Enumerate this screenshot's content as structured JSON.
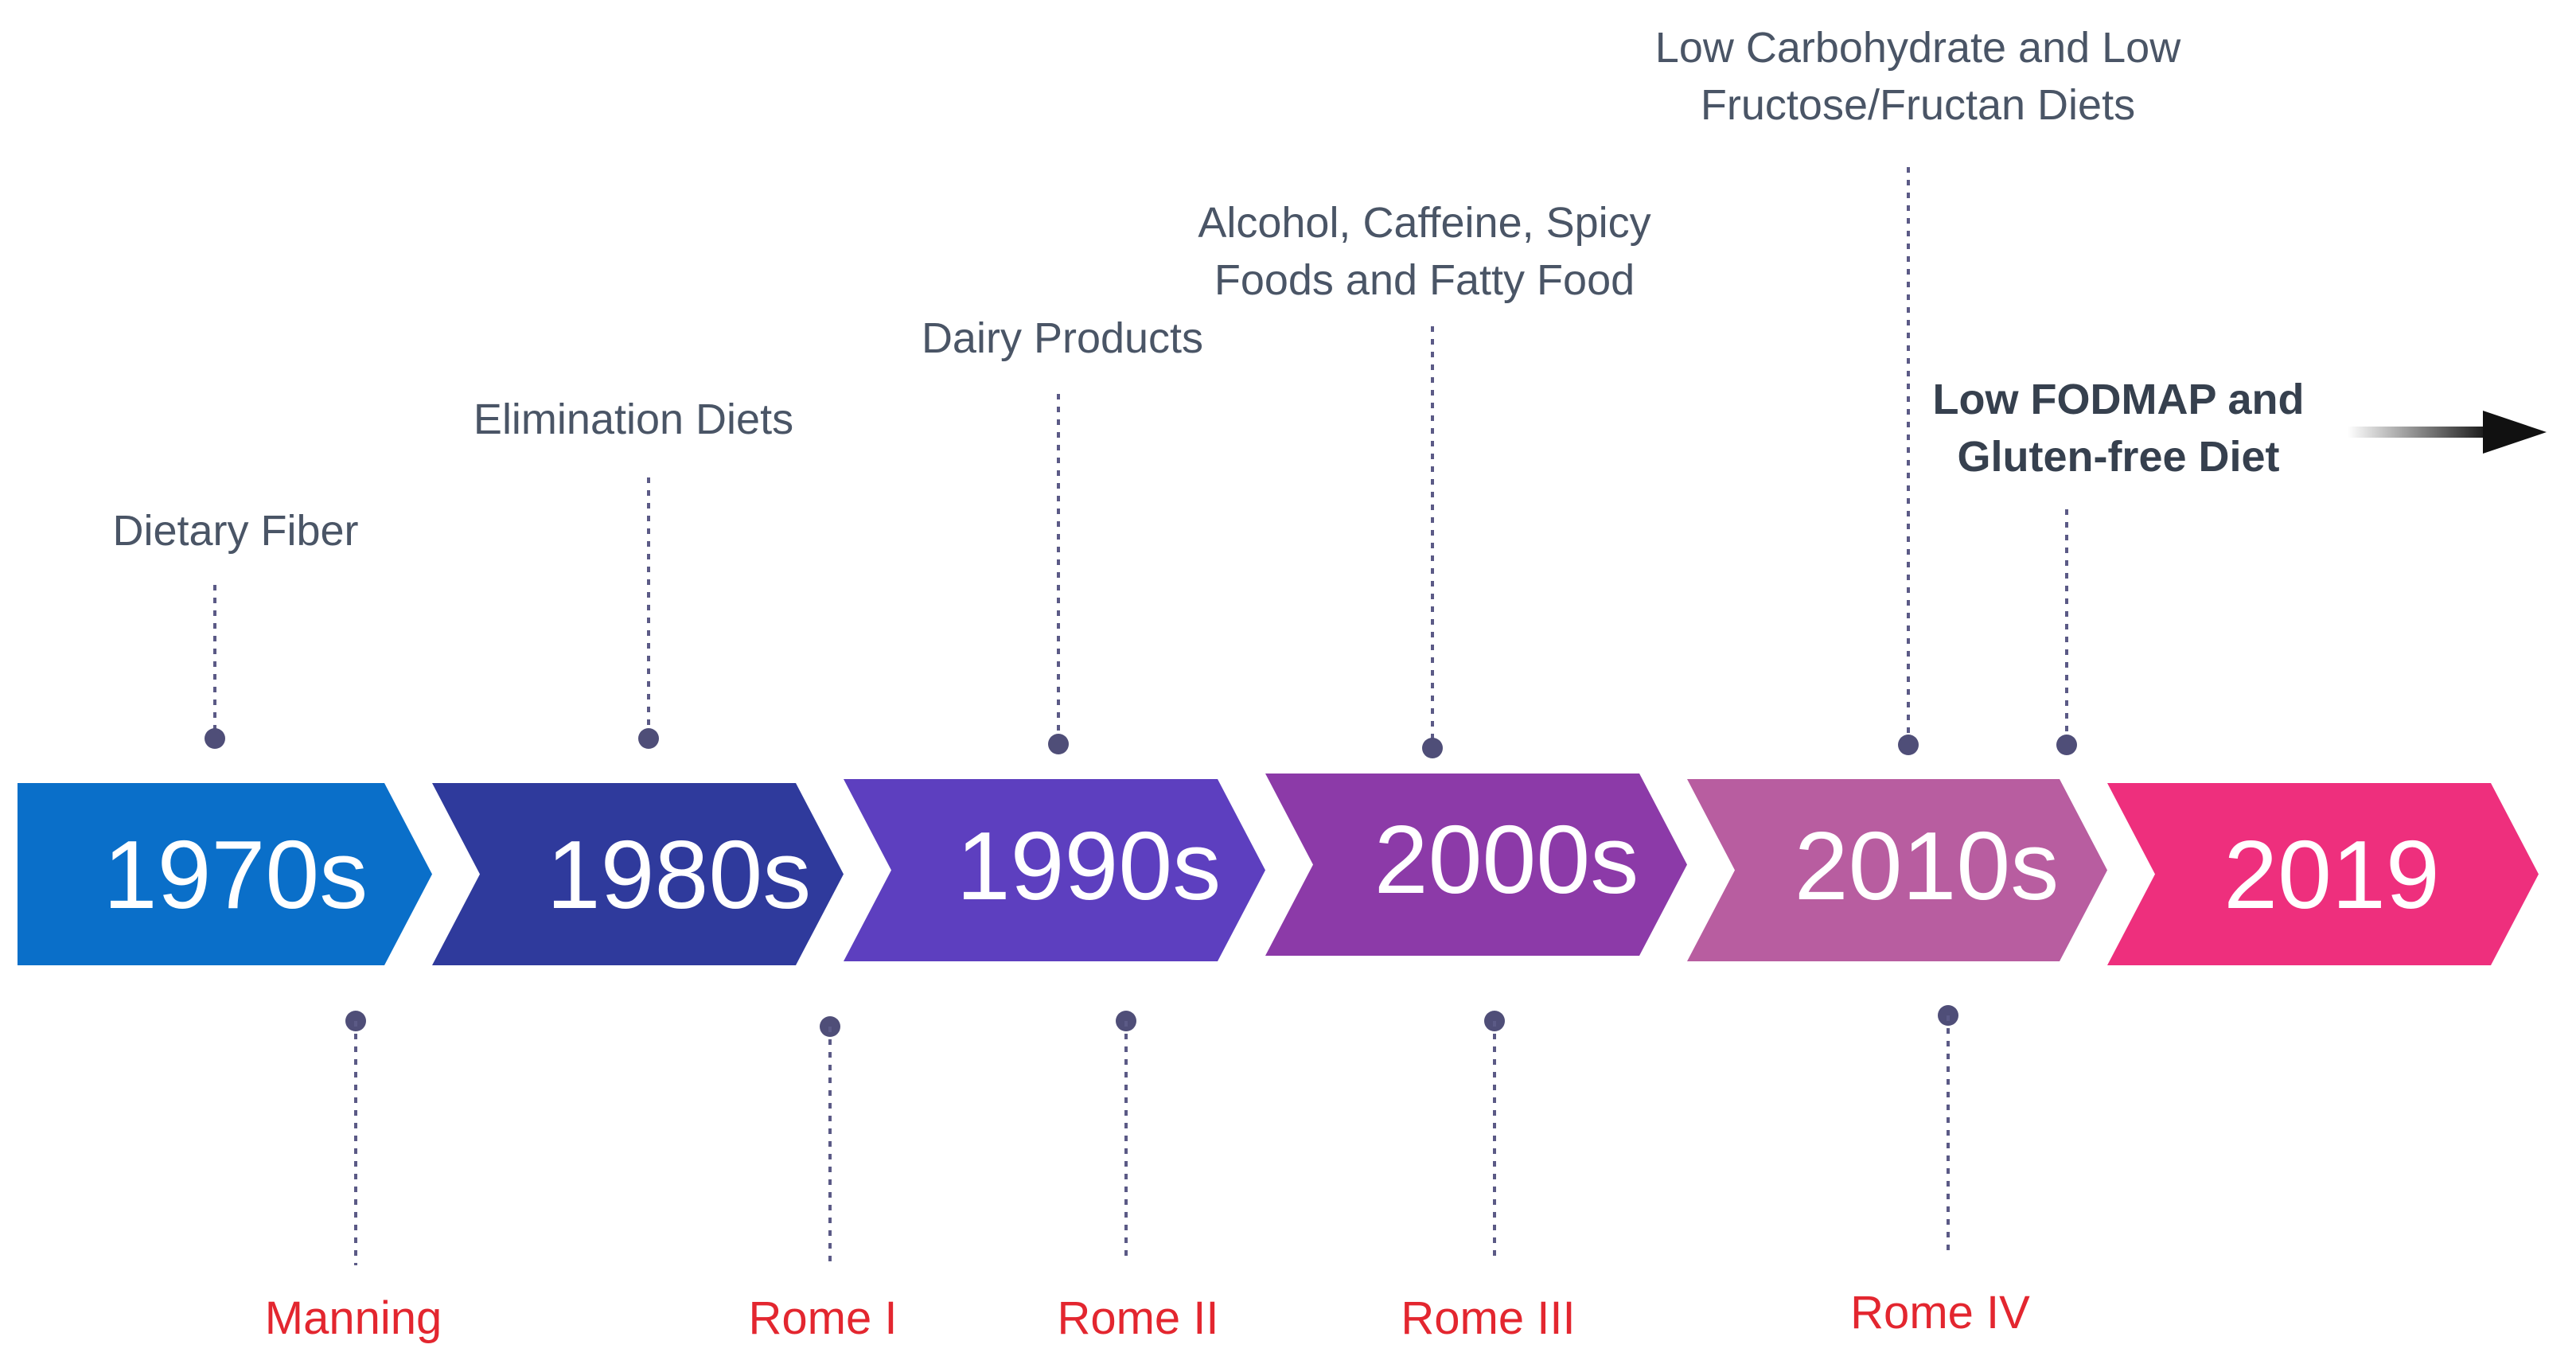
{
  "eras": [
    {
      "label": "1970s",
      "color": "#0a6fc9"
    },
    {
      "label": "1980s",
      "color": "#2f3a9c"
    },
    {
      "label": "1990s",
      "color": "#5d3fbf"
    },
    {
      "label": "2000s",
      "color": "#8c3aa8"
    },
    {
      "label": "2010s",
      "color": "#b85da0"
    },
    {
      "label": "2019",
      "color": "#ee2f7d"
    }
  ],
  "diet_events": [
    {
      "lines": [
        "Dietary Fiber"
      ]
    },
    {
      "lines": [
        "Elimination Diets"
      ]
    },
    {
      "lines": [
        "Dairy Products"
      ]
    },
    {
      "lines": [
        "Alcohol, Caffeine, Spicy",
        "Foods and Fatty Food"
      ]
    },
    {
      "lines": [
        "Low Carbohydrate and Low",
        "Fructose/Fructan Diets"
      ]
    },
    {
      "lines": [
        "Low FODMAP and",
        "Gluten-free Diet"
      ],
      "emphasis": true
    }
  ],
  "criteria_events": [
    {
      "label": "Manning"
    },
    {
      "label": "Rome I"
    },
    {
      "label": "Rome II"
    },
    {
      "label": "Rome III"
    },
    {
      "label": "Rome IV"
    }
  ],
  "colors": {
    "label_text": "#4a5566",
    "criteria_text": "#e3262f",
    "leader": "#5b5a86",
    "arrow": "#111111"
  }
}
